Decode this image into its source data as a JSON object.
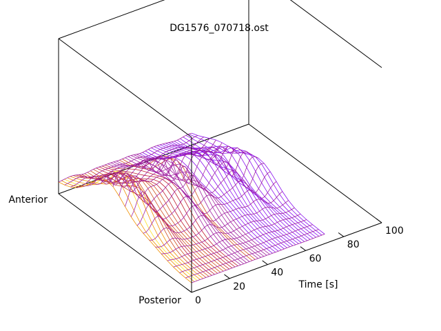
{
  "chart_data": {
    "type": "surface",
    "title": "DG1576_070718.ost",
    "x_axis": {
      "label": "Time [s]",
      "range": [
        0,
        100
      ],
      "ticks": [
        0,
        20,
        40,
        60,
        80,
        100
      ],
      "tick_labels": [
        "0",
        "20",
        "40",
        "60",
        "80",
        "100"
      ]
    },
    "y_axis": {
      "labels": {
        "start": "Anterior",
        "end": "Posterior"
      }
    },
    "z_axis": {
      "label": "",
      "shown": false
    },
    "style": "wireframe mesh",
    "color_scale": [
      "#7f00ff",
      "#c02040",
      "#e06000",
      "#ffe000"
    ],
    "grid": false
  }
}
